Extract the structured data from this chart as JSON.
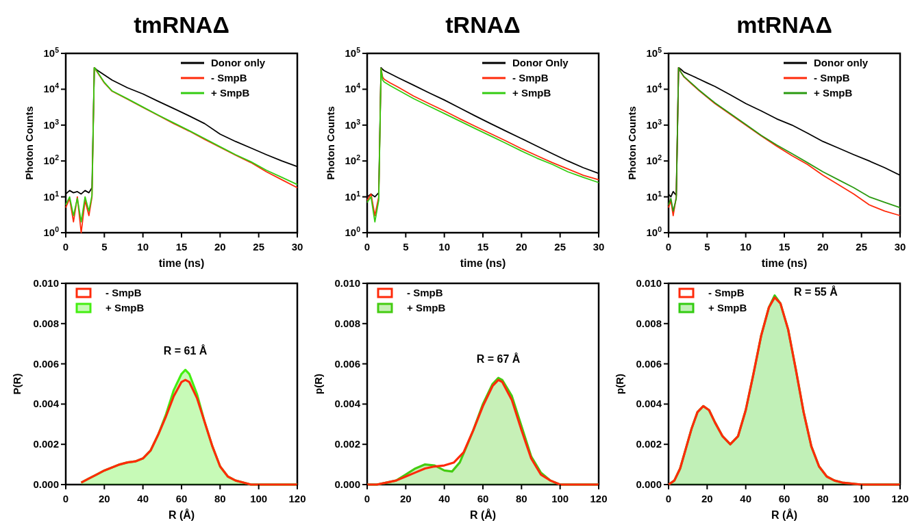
{
  "chart_data": [
    {
      "type": "line",
      "title": "tmRNAΔ",
      "xlabel": "time (ns)",
      "ylabel": "Photon Counts",
      "log": "y",
      "legend": "top right",
      "xlim": [
        0,
        30
      ],
      "xticks": [
        0,
        5,
        10,
        15,
        20,
        25,
        30
      ],
      "ylim": [
        1,
        100000
      ],
      "yticks": [
        {
          "value": 1,
          "label": "10$^{0}$"
        },
        {
          "value": 10,
          "label": "10$^{1}$"
        },
        {
          "value": 100,
          "label": "10$^{2}$"
        },
        {
          "value": 1000,
          "label": "10$^{3}$"
        },
        {
          "value": 10000,
          "label": "10$^{4}$"
        },
        {
          "value": 100000,
          "label": "10$^{5}$"
        }
      ],
      "x": [
        0,
        0.5,
        1,
        1.5,
        2,
        2.5,
        3,
        3.4,
        3.7,
        4,
        5,
        6,
        8,
        10,
        12,
        14,
        16,
        18,
        20,
        22,
        24,
        26,
        28,
        30
      ],
      "series": [
        {
          "name": "Donor only",
          "color": "#000000",
          "values": [
            12,
            15,
            13,
            14,
            12,
            15,
            13,
            18,
            40000,
            35000,
            25000,
            18000,
            11000,
            7400,
            4600,
            2900,
            1800,
            1100,
            560,
            350,
            230,
            150,
            100,
            70
          ]
        },
        {
          "name": "- SmpB",
          "color": "#ff2a0a",
          "values": [
            5,
            9,
            2,
            10,
            1,
            8,
            3,
            10,
            40000,
            32000,
            15000,
            8800,
            5300,
            3100,
            1850,
            1100,
            680,
            400,
            240,
            145,
            90,
            50,
            30,
            18
          ]
        },
        {
          "name": "+ SmpB",
          "color": "#33cc11",
          "values": [
            6,
            10,
            3,
            9,
            2,
            10,
            4,
            11,
            40000,
            33000,
            15500,
            9000,
            5400,
            3200,
            1900,
            1150,
            700,
            420,
            250,
            150,
            95,
            55,
            35,
            22
          ]
        }
      ]
    },
    {
      "type": "line",
      "title": "tRNAΔ",
      "xlabel": "time (ns)",
      "ylabel": "Photon Counts",
      "log": "y",
      "legend": "top right",
      "xlim": [
        0,
        30
      ],
      "xticks": [
        0,
        5,
        10,
        15,
        20,
        25,
        30
      ],
      "ylim": [
        1,
        100000
      ],
      "yticks": [
        {
          "value": 1,
          "label": "10$^{0}$"
        },
        {
          "value": 10,
          "label": "10$^{1}$"
        },
        {
          "value": 100,
          "label": "10$^{2}$"
        },
        {
          "value": 1000,
          "label": "10$^{3}$"
        },
        {
          "value": 10000,
          "label": "10$^{4}$"
        },
        {
          "value": 100000,
          "label": "10$^{5}$"
        }
      ],
      "x": [
        0,
        0.5,
        1,
        1.5,
        1.8,
        2,
        2.2,
        3,
        4,
        6,
        8,
        10,
        12,
        14,
        16,
        18,
        20,
        22,
        24,
        26,
        28,
        30
      ],
      "series": [
        {
          "name": "Donor Only",
          "color": "#000000",
          "values": [
            10,
            12,
            10,
            13,
            40000,
            36000,
            33000,
            27000,
            21000,
            13000,
            8000,
            5000,
            3000,
            1800,
            1100,
            680,
            420,
            260,
            160,
            100,
            65,
            45
          ]
        },
        {
          "name": "- SmpB",
          "color": "#ff2a0a",
          "values": [
            8,
            12,
            3,
            10,
            38000,
            22000,
            19000,
            15000,
            11500,
            6500,
            4000,
            2500,
            1500,
            930,
            580,
            360,
            220,
            140,
            90,
            60,
            40,
            30
          ]
        },
        {
          "name": "+ SmpB",
          "color": "#33cc11",
          "values": [
            7,
            10,
            2,
            8,
            38000,
            18000,
            16000,
            12500,
            9500,
            5500,
            3400,
            2100,
            1300,
            800,
            500,
            310,
            190,
            120,
            80,
            50,
            35,
            25
          ]
        }
      ]
    },
    {
      "type": "line",
      "title": "mtRNAΔ",
      "xlabel": "time (ns)",
      "ylabel": "Photon Counts",
      "log": "y",
      "legend": "top right",
      "xlim": [
        0,
        30
      ],
      "xticks": [
        0,
        5,
        10,
        15,
        20,
        25,
        30
      ],
      "ylim": [
        1,
        100000
      ],
      "yticks": [
        {
          "value": 1,
          "label": "10$^{0}$"
        },
        {
          "value": 10,
          "label": "10$^{1}$"
        },
        {
          "value": 100,
          "label": "10$^{2}$"
        },
        {
          "value": 1000,
          "label": "10$^{3}$"
        },
        {
          "value": 10000,
          "label": "10$^{4}$"
        },
        {
          "value": 100000,
          "label": "10$^{5}$"
        }
      ],
      "x": [
        0,
        0.3,
        0.6,
        1,
        1.3,
        1.6,
        2,
        3,
        4,
        5,
        6,
        8,
        10,
        12,
        14,
        16,
        18,
        20,
        22,
        24,
        26,
        28,
        30
      ],
      "series": [
        {
          "name": "Donor only",
          "color": "#000000",
          "values": [
            12,
            10,
            14,
            11,
            40000,
            36000,
            30000,
            24000,
            19000,
            15000,
            12000,
            7000,
            4000,
            2500,
            1500,
            1000,
            600,
            350,
            230,
            150,
            100,
            65,
            40
          ]
        },
        {
          "name": "- SmpB",
          "color": "#ff2a0a",
          "values": [
            5,
            8,
            3,
            10,
            40000,
            30000,
            22000,
            14000,
            9000,
            6000,
            4000,
            2000,
            1000,
            500,
            260,
            140,
            80,
            40,
            22,
            12,
            6,
            4,
            3
          ]
        },
        {
          "name": "+ SmpB",
          "color": "#2a9a10",
          "values": [
            6,
            9,
            4,
            9,
            40000,
            30000,
            22500,
            14500,
            9300,
            6200,
            4200,
            2100,
            1050,
            520,
            280,
            160,
            90,
            50,
            30,
            18,
            10,
            7,
            5
          ]
        }
      ]
    },
    {
      "type": "area",
      "xlabel": "R (Å)",
      "ylabel": "P(R)",
      "legend": "top left",
      "xlim": [
        0,
        120
      ],
      "xticks": [
        0,
        20,
        40,
        60,
        80,
        100,
        120
      ],
      "ylim": [
        0,
        0.01
      ],
      "yticks": [
        {
          "value": 0,
          "label": "0.000"
        },
        {
          "value": 0.002,
          "label": "0.002"
        },
        {
          "value": 0.004,
          "label": "0.004"
        },
        {
          "value": 0.006,
          "label": "0.006"
        },
        {
          "value": 0.008,
          "label": "0.008"
        },
        {
          "value": 0.01,
          "label": "0.010"
        }
      ],
      "annotations": [
        "R = 61 Å"
      ],
      "series": [
        {
          "name": "- SmpB",
          "type": "line",
          "color": "#ff2a0a",
          "x": [
            8,
            12,
            16,
            20,
            24,
            28,
            32,
            36,
            40,
            44,
            48,
            52,
            56,
            60,
            62,
            64,
            68,
            72,
            76,
            80,
            84,
            88,
            92,
            96,
            100,
            110,
            120
          ],
          "values": [
            0.0001,
            0.0003,
            0.0005,
            0.0007,
            0.00085,
            0.001,
            0.0011,
            0.00115,
            0.0013,
            0.0017,
            0.0025,
            0.0034,
            0.0044,
            0.0051,
            0.0052,
            0.0051,
            0.0043,
            0.0031,
            0.0019,
            0.0009,
            0.0004,
            0.0002,
            0.0001,
            0,
            0,
            0,
            0
          ]
        },
        {
          "name": "+ SmpB",
          "color": "#44ee11",
          "x": [
            8,
            12,
            16,
            20,
            24,
            28,
            32,
            36,
            40,
            44,
            48,
            52,
            56,
            60,
            62,
            64,
            68,
            72,
            76,
            80,
            84,
            88,
            92,
            96,
            100,
            110,
            120
          ],
          "values": [
            0.0001,
            0.0003,
            0.0005,
            0.0007,
            0.00085,
            0.001,
            0.0011,
            0.00115,
            0.0013,
            0.0017,
            0.0025,
            0.0035,
            0.0047,
            0.0055,
            0.0057,
            0.0055,
            0.0045,
            0.0031,
            0.0019,
            0.0009,
            0.0004,
            0.0002,
            0.0001,
            0,
            0,
            0,
            0
          ]
        }
      ]
    },
    {
      "type": "area",
      "xlabel": "R (Å)",
      "ylabel": "p(R)",
      "legend": "top left",
      "xlim": [
        0,
        120
      ],
      "xticks": [
        0,
        20,
        40,
        60,
        80,
        100,
        120
      ],
      "ylim": [
        0,
        0.01
      ],
      "yticks": [
        {
          "value": 0,
          "label": "0.000"
        },
        {
          "value": 0.002,
          "label": "0.002"
        },
        {
          "value": 0.004,
          "label": "0.004"
        },
        {
          "value": 0.006,
          "label": "0.006"
        },
        {
          "value": 0.008,
          "label": "0.008"
        },
        {
          "value": 0.01,
          "label": "0.010"
        }
      ],
      "annotations": [
        "R = 67 Å"
      ],
      "series": [
        {
          "name": "- SmpB",
          "type": "line",
          "color": "#ff2a0a",
          "x": [
            0,
            5,
            10,
            15,
            20,
            25,
            30,
            35,
            40,
            45,
            50,
            55,
            60,
            65,
            68,
            70,
            75,
            80,
            85,
            90,
            95,
            100,
            110,
            120
          ],
          "values": [
            0,
            0,
            0.0001,
            0.0002,
            0.0004,
            0.0006,
            0.0008,
            0.0009,
            0.00095,
            0.0011,
            0.0016,
            0.0027,
            0.0039,
            0.0049,
            0.0052,
            0.0051,
            0.0042,
            0.0027,
            0.0013,
            0.0005,
            0.0002,
            0,
            0,
            0
          ]
        },
        {
          "name": "+ SmpB",
          "color": "#44cc11",
          "x": [
            0,
            5,
            10,
            15,
            20,
            25,
            30,
            35,
            40,
            44,
            48,
            52,
            55,
            60,
            65,
            68,
            70,
            75,
            80,
            85,
            90,
            95,
            100,
            110,
            120
          ],
          "values": [
            0,
            0,
            0.0001,
            0.0002,
            0.0005,
            0.0008,
            0.001,
            0.00095,
            0.0007,
            0.00065,
            0.0011,
            0.002,
            0.0027,
            0.004,
            0.005,
            0.0053,
            0.0052,
            0.0044,
            0.0029,
            0.0014,
            0.0006,
            0.0002,
            0,
            0,
            0
          ]
        }
      ]
    },
    {
      "type": "area",
      "xlabel": "R (Å)",
      "ylabel": "p(R)",
      "legend": "top left",
      "xlim": [
        0,
        120
      ],
      "xticks": [
        0,
        20,
        40,
        60,
        80,
        100,
        120
      ],
      "ylim": [
        0,
        0.01
      ],
      "yticks": [
        {
          "value": 0,
          "label": "0.000"
        },
        {
          "value": 0.002,
          "label": "0.002"
        },
        {
          "value": 0.004,
          "label": "0.004"
        },
        {
          "value": 0.006,
          "label": "0.006"
        },
        {
          "value": 0.008,
          "label": "0.008"
        },
        {
          "value": 0.01,
          "label": "0.010"
        }
      ],
      "annotations": [
        "R = 55 Å"
      ],
      "series": [
        {
          "name": "- SmpB",
          "type": "line",
          "color": "#ff2a0a",
          "x": [
            0,
            3,
            6,
            9,
            12,
            15,
            18,
            21,
            24,
            28,
            32,
            36,
            40,
            44,
            48,
            52,
            55,
            58,
            62,
            66,
            70,
            74,
            78,
            82,
            86,
            90,
            100,
            120
          ],
          "values": [
            0,
            0.0002,
            0.0008,
            0.0018,
            0.0028,
            0.0036,
            0.0039,
            0.0037,
            0.0031,
            0.0024,
            0.002,
            0.0024,
            0.0037,
            0.0055,
            0.0074,
            0.0088,
            0.0093,
            0.009,
            0.0077,
            0.0057,
            0.0036,
            0.0019,
            0.0009,
            0.0004,
            0.0002,
            0.0001,
            0,
            0
          ]
        },
        {
          "name": "+ SmpB",
          "color": "#33cc11",
          "x": [
            0,
            3,
            6,
            9,
            12,
            15,
            18,
            21,
            24,
            28,
            32,
            36,
            40,
            44,
            48,
            52,
            55,
            58,
            62,
            66,
            70,
            74,
            78,
            82,
            86,
            90,
            100,
            120
          ],
          "values": [
            0,
            0.0002,
            0.0008,
            0.0018,
            0.0028,
            0.0036,
            0.0039,
            0.0037,
            0.0031,
            0.0024,
            0.002,
            0.0024,
            0.0037,
            0.0055,
            0.0074,
            0.0088,
            0.0094,
            0.009,
            0.0077,
            0.0057,
            0.0036,
            0.0019,
            0.0009,
            0.0004,
            0.0002,
            0.0001,
            0,
            0
          ]
        }
      ]
    }
  ]
}
